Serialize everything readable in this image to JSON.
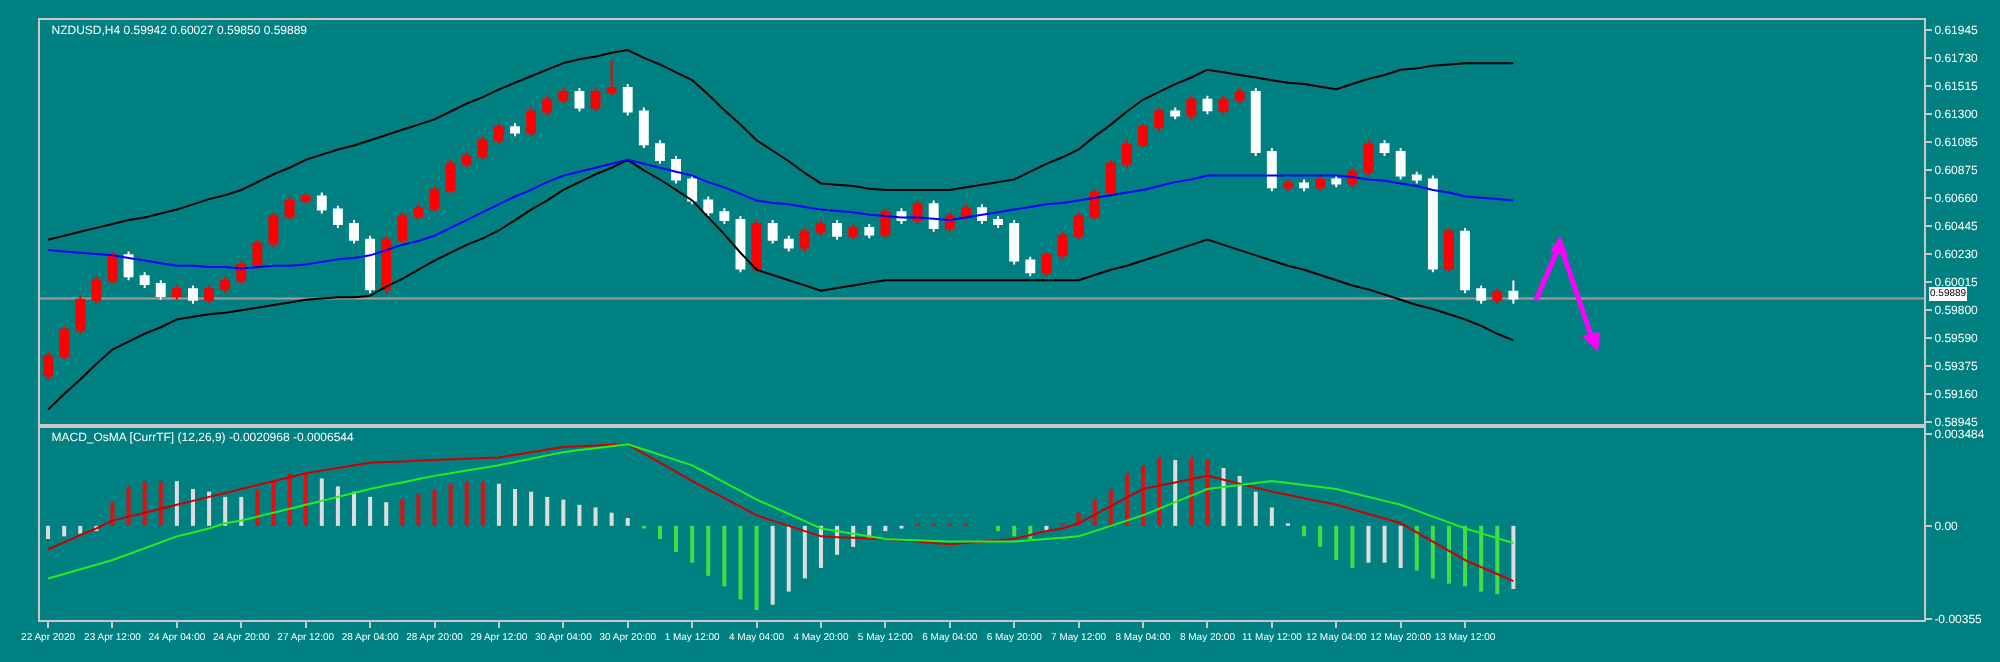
{
  "chart_data": [
    {
      "type": "candlestick",
      "title": "NZDUSD,H4 0.59942 0.60027 0.59850 0.59889",
      "tick_labels": "y",
      "categories": [
        null,
        null,
        null,
        null,
        null,
        null,
        null,
        null,
        null,
        null,
        null,
        null,
        null,
        null,
        null,
        null,
        null,
        null,
        null,
        null,
        null,
        null,
        null,
        null,
        null,
        null,
        null,
        null,
        null,
        null,
        null,
        null,
        null,
        null,
        null,
        null,
        null,
        null,
        null,
        null,
        null,
        null,
        null,
        null,
        null,
        null,
        null,
        null,
        null,
        null,
        null,
        null,
        null,
        null,
        null,
        null,
        null,
        null,
        null,
        null,
        null,
        null,
        null,
        null,
        null,
        null,
        null,
        null,
        null,
        null,
        null,
        null,
        null,
        null,
        null,
        null,
        null,
        null,
        null,
        null,
        null,
        null,
        null,
        null,
        null,
        null,
        null,
        null,
        null,
        null,
        null,
        null,
        null,
        null,
        null,
        null,
        null,
        null,
        null,
        null,
        null,
        null,
        null,
        null,
        null,
        null,
        null,
        null,
        null,
        null,
        null,
        null,
        null,
        null,
        null,
        null,
        null
      ],
      "ohlc": [
        [
          0.593,
          0.5948,
          0.5927,
          0.5945
        ],
        [
          0.5945,
          0.5968,
          0.5942,
          0.5965
        ],
        [
          0.5965,
          0.5991,
          0.5962,
          0.5988
        ],
        [
          0.5988,
          0.6006,
          0.5985,
          0.6003
        ],
        [
          0.6003,
          0.6025,
          0.6,
          0.6022
        ],
        [
          0.6022,
          0.6025,
          0.6003,
          0.6006
        ],
        [
          0.6006,
          0.6009,
          0.5997,
          0.6
        ],
        [
          0.6,
          0.6003,
          0.5988,
          0.5991
        ],
        [
          0.5991,
          0.5999,
          0.5988,
          0.5996
        ],
        [
          0.5996,
          0.5999,
          0.5985,
          0.5988
        ],
        [
          0.5988,
          0.5999,
          0.5985,
          0.5996
        ],
        [
          0.5996,
          0.6006,
          0.5993,
          0.6003
        ],
        [
          0.6003,
          0.6018,
          0.6,
          0.6015
        ],
        [
          0.6015,
          0.6034,
          0.6012,
          0.6031
        ],
        [
          0.6031,
          0.6055,
          0.6028,
          0.6052
        ],
        [
          0.6052,
          0.6067,
          0.6049,
          0.6064
        ],
        [
          0.6064,
          0.607,
          0.6061,
          0.6067
        ],
        [
          0.6067,
          0.607,
          0.6054,
          0.6057
        ],
        [
          0.6057,
          0.606,
          0.6043,
          0.6046
        ],
        [
          0.6046,
          0.6049,
          0.6031,
          0.6034
        ],
        [
          0.6034,
          0.6037,
          0.5993,
          0.5996
        ],
        [
          0.5996,
          0.6037,
          0.5993,
          0.6034
        ],
        [
          0.6034,
          0.6055,
          0.6031,
          0.6052
        ],
        [
          0.6052,
          0.6061,
          0.6049,
          0.6058
        ],
        [
          0.6058,
          0.6075,
          0.6055,
          0.6072
        ],
        [
          0.6072,
          0.6095,
          0.6069,
          0.6092
        ],
        [
          0.6092,
          0.6101,
          0.6089,
          0.6098
        ],
        [
          0.6098,
          0.6113,
          0.6095,
          0.611
        ],
        [
          0.611,
          0.6123,
          0.6107,
          0.612
        ],
        [
          0.612,
          0.6123,
          0.6113,
          0.6116
        ],
        [
          0.6116,
          0.6135,
          0.6113,
          0.6132
        ],
        [
          0.6132,
          0.6144,
          0.6129,
          0.6141
        ],
        [
          0.6141,
          0.615,
          0.6138,
          0.6147
        ],
        [
          0.6147,
          0.615,
          0.6132,
          0.6135
        ],
        [
          0.6135,
          0.615,
          0.6132,
          0.6147
        ],
        [
          0.6147,
          0.6172,
          0.6144,
          0.615
        ],
        [
          0.615,
          0.6153,
          0.6129,
          0.6132
        ],
        [
          0.6132,
          0.6135,
          0.6104,
          0.6107
        ],
        [
          0.6107,
          0.611,
          0.6092,
          0.6095
        ],
        [
          0.6095,
          0.6098,
          0.6077,
          0.608
        ],
        [
          0.608,
          0.6083,
          0.6061,
          0.6064
        ],
        [
          0.6064,
          0.6067,
          0.6052,
          0.6055
        ],
        [
          0.6055,
          0.6058,
          0.6046,
          0.6049
        ],
        [
          0.6049,
          0.6052,
          0.6009,
          0.6012
        ],
        [
          0.6012,
          0.6049,
          0.6009,
          0.6046
        ],
        [
          0.6046,
          0.6049,
          0.6031,
          0.6034
        ],
        [
          0.6034,
          0.6037,
          0.6025,
          0.6028
        ],
        [
          0.6028,
          0.6043,
          0.6025,
          0.604
        ],
        [
          0.604,
          0.6049,
          0.6037,
          0.6046
        ],
        [
          0.6046,
          0.6049,
          0.6034,
          0.6037
        ],
        [
          0.6037,
          0.6046,
          0.6034,
          0.6043
        ],
        [
          0.6043,
          0.6046,
          0.6035,
          0.6038
        ],
        [
          0.6038,
          0.6058,
          0.6035,
          0.6055
        ],
        [
          0.6055,
          0.6058,
          0.6046,
          0.6049
        ],
        [
          0.6049,
          0.6064,
          0.6046,
          0.6061
        ],
        [
          0.6061,
          0.6064,
          0.604,
          0.6043
        ],
        [
          0.6043,
          0.6055,
          0.604,
          0.6052
        ],
        [
          0.6052,
          0.6061,
          0.6049,
          0.6058
        ],
        [
          0.6058,
          0.6061,
          0.6046,
          0.6049
        ],
        [
          0.6049,
          0.6052,
          0.6043,
          0.6046
        ],
        [
          0.6046,
          0.6049,
          0.6015,
          0.6018
        ],
        [
          0.6018,
          0.6021,
          0.6006,
          0.6009
        ],
        [
          0.6009,
          0.6025,
          0.6006,
          0.6022
        ],
        [
          0.6022,
          0.604,
          0.6019,
          0.6037
        ],
        [
          0.6037,
          0.6055,
          0.6034,
          0.6052
        ],
        [
          0.6052,
          0.6073,
          0.6049,
          0.607
        ],
        [
          0.607,
          0.6095,
          0.6067,
          0.6092
        ],
        [
          0.6092,
          0.611,
          0.6089,
          0.6107
        ],
        [
          0.6107,
          0.6123,
          0.6104,
          0.612
        ],
        [
          0.612,
          0.6135,
          0.6117,
          0.6132
        ],
        [
          0.6132,
          0.6135,
          0.6126,
          0.6129
        ],
        [
          0.6129,
          0.6144,
          0.6126,
          0.6141
        ],
        [
          0.6141,
          0.6144,
          0.613,
          0.6133
        ],
        [
          0.6133,
          0.6144,
          0.613,
          0.6141
        ],
        [
          0.6141,
          0.615,
          0.6138,
          0.6147
        ],
        [
          0.6147,
          0.615,
          0.6098,
          0.6101
        ],
        [
          0.6101,
          0.6104,
          0.6071,
          0.6074
        ],
        [
          0.6074,
          0.608,
          0.6071,
          0.6077
        ],
        [
          0.6077,
          0.608,
          0.6071,
          0.6074
        ],
        [
          0.6074,
          0.6083,
          0.6071,
          0.608
        ],
        [
          0.608,
          0.6083,
          0.6074,
          0.6077
        ],
        [
          0.6077,
          0.6089,
          0.6074,
          0.6086
        ],
        [
          0.6086,
          0.611,
          0.6083,
          0.6107
        ],
        [
          0.6107,
          0.611,
          0.6098,
          0.6101
        ],
        [
          0.6101,
          0.6104,
          0.608,
          0.6083
        ],
        [
          0.6083,
          0.6086,
          0.6077,
          0.608
        ],
        [
          0.608,
          0.6083,
          0.6009,
          0.6012
        ],
        [
          0.6012,
          0.6043,
          0.6009,
          0.604
        ],
        [
          0.604,
          0.6043,
          0.5993,
          0.5996
        ],
        [
          0.5996,
          0.5999,
          0.5985,
          0.5988
        ],
        [
          0.5988,
          0.5997,
          0.5985,
          0.5994
        ],
        [
          0.59942,
          0.60027,
          0.5985,
          0.59889
        ],
        null,
        null,
        null,
        null,
        null,
        null,
        null,
        null,
        null,
        null,
        null,
        null,
        null,
        null,
        null,
        null,
        null,
        null,
        null,
        null,
        null,
        null,
        null,
        null,
        null
      ],
      "colors": [
        "#ff0000",
        "#ff0000",
        "#ff0000",
        "#ff0000",
        "#ff0000",
        "#ffffff",
        "#ffffff",
        "#ffffff",
        "#ff0000",
        "#ffffff",
        "#ff0000",
        "#ff0000",
        "#ff0000",
        "#ff0000",
        "#ff0000",
        "#ff0000",
        "#ff0000",
        "#ffffff",
        "#ffffff",
        "#ffffff",
        "#ffffff",
        "#ff0000",
        "#ff0000",
        "#ff0000",
        "#ff0000",
        "#ff0000",
        "#ff0000",
        "#ff0000",
        "#ff0000",
        "#ffffff",
        "#ff0000",
        "#ff0000",
        "#ff0000",
        "#ffffff",
        "#ff0000",
        "#ff0000",
        "#ffffff",
        "#ffffff",
        "#ffffff",
        "#ffffff",
        "#ffffff",
        "#ffffff",
        "#ffffff",
        "#ffffff",
        "#ff0000",
        "#ffffff",
        "#ffffff",
        "#ff0000",
        "#ff0000",
        "#ffffff",
        "#ff0000",
        "#ffffff",
        "#ff0000",
        "#ffffff",
        "#ff0000",
        "#ffffff",
        "#ff0000",
        "#ff0000",
        "#ffffff",
        "#ffffff",
        "#ffffff",
        "#ffffff",
        "#ff0000",
        "#ff0000",
        "#ff0000",
        "#ff0000",
        "#ff0000",
        "#ff0000",
        "#ff0000",
        "#ff0000",
        "#ffffff",
        "#ff0000",
        "#ffffff",
        "#ff0000",
        "#ff0000",
        "#ffffff",
        "#ffffff",
        "#ff0000",
        "#ffffff",
        "#ff0000",
        "#ffffff",
        "#ff0000",
        "#ff0000",
        "#ffffff",
        "#ffffff",
        "#ffffff",
        "#ffffff",
        "#ff0000",
        "#ffffff",
        "#ffffff",
        "#ff0000",
        "#ffffff",
        null,
        null,
        null,
        null,
        null,
        null,
        null,
        null,
        null,
        null,
        null,
        null,
        null,
        null,
        null,
        null,
        null,
        null,
        null,
        null,
        null,
        null,
        null,
        null,
        null
      ],
      "series": [
        {
          "type": "line",
          "color": "#000000",
          "values": [
            0.6034,
            0.6037,
            0.604,
            0.6043,
            0.6046,
            0.6049,
            0.6051,
            0.6054,
            0.6057,
            0.6061,
            0.6065,
            0.6068,
            0.6072,
            0.6078,
            0.6084,
            0.6089,
            0.6095,
            0.6099,
            0.6103,
            0.6106,
            0.611,
            0.6114,
            0.6118,
            0.6122,
            0.6126,
            0.6132,
            0.6138,
            0.6143,
            0.6149,
            0.6154,
            0.6159,
            0.6164,
            0.6169,
            0.6172,
            0.6174,
            0.6177,
            0.6179,
            0.6173,
            0.6168,
            0.6162,
            0.6156,
            0.6145,
            0.6133,
            0.6122,
            0.611,
            0.6102,
            0.6094,
            0.6085,
            0.6077,
            0.6076,
            0.6075,
            0.6073,
            0.6072,
            0.6072,
            0.6072,
            0.6072,
            0.6072,
            0.6074,
            0.6076,
            0.6078,
            0.608,
            0.6086,
            0.6092,
            0.6097,
            0.6103,
            0.6113,
            0.6122,
            0.6132,
            0.6141,
            0.6147,
            0.6153,
            0.6158,
            0.6164,
            0.6162,
            0.616,
            0.6158,
            0.6156,
            0.6154,
            0.6153,
            0.6151,
            0.6149,
            0.6153,
            0.6157,
            0.616,
            0.6164,
            0.6165,
            0.6167,
            0.6168,
            0.6169,
            0.6169,
            0.6169,
            0.6169,
            null,
            null,
            null,
            null,
            null,
            null,
            null,
            null,
            null,
            null,
            null,
            null,
            null,
            null,
            null,
            null,
            null,
            null,
            null,
            null,
            null,
            null,
            null,
            null,
            null
          ]
        },
        {
          "type": "line",
          "color": "#000000",
          "values": [
            0.5904,
            0.5916,
            0.5927,
            0.5939,
            0.595,
            0.5956,
            0.5962,
            0.5967,
            0.5973,
            0.5975,
            0.5977,
            0.5978,
            0.598,
            0.5982,
            0.5984,
            0.5986,
            0.5988,
            0.5989,
            0.599,
            0.599,
            0.5991,
            0.5998,
            0.6004,
            0.6011,
            0.6018,
            0.6024,
            0.603,
            0.6035,
            0.6041,
            0.6049,
            0.6057,
            0.6064,
            0.6072,
            0.6078,
            0.6084,
            0.6089,
            0.6095,
            0.6087,
            0.608,
            0.6072,
            0.6064,
            0.6051,
            0.6038,
            0.6024,
            0.6011,
            0.6007,
            0.6003,
            0.5999,
            0.5995,
            0.5997,
            0.5999,
            0.6001,
            0.6003,
            0.6003,
            0.6003,
            0.6003,
            0.6003,
            0.6003,
            0.6003,
            0.6003,
            0.6003,
            0.6003,
            0.6003,
            0.6003,
            0.6003,
            0.6007,
            0.6011,
            0.6014,
            0.6018,
            0.6022,
            0.6026,
            0.603,
            0.6034,
            0.603,
            0.6026,
            0.6022,
            0.6018,
            0.6014,
            0.6011,
            0.6007,
            0.6003,
            0.5999,
            0.5996,
            0.5992,
            0.5988,
            0.5984,
            0.5981,
            0.5977,
            0.5973,
            0.5968,
            0.5962,
            0.5957,
            null,
            null,
            null,
            null,
            null,
            null,
            null,
            null,
            null,
            null,
            null,
            null,
            null,
            null,
            null,
            null,
            null,
            null,
            null,
            null,
            null,
            null,
            null,
            null,
            null
          ]
        },
        {
          "type": "line",
          "color": "#0000ff",
          "values": [
            0.6026,
            0.6025,
            0.6024,
            0.6023,
            0.6022,
            0.602,
            0.6018,
            0.6016,
            0.6014,
            0.6014,
            0.6013,
            0.6013,
            0.6012,
            0.6013,
            0.6014,
            0.6014,
            0.6015,
            0.6017,
            0.6019,
            0.602,
            0.6022,
            0.6026,
            0.603,
            0.6033,
            0.6037,
            0.6043,
            0.6049,
            0.6055,
            0.6061,
            0.6067,
            0.6072,
            0.6078,
            0.6083,
            0.6086,
            0.6089,
            0.6092,
            0.6095,
            0.6092,
            0.6089,
            0.6086,
            0.6083,
            0.6078,
            0.6074,
            0.6069,
            0.6064,
            0.6062,
            0.6061,
            0.6059,
            0.6057,
            0.6056,
            0.6055,
            0.6053,
            0.6052,
            0.6051,
            0.6051,
            0.605,
            0.6049,
            0.6051,
            0.6053,
            0.6055,
            0.6057,
            0.6059,
            0.6061,
            0.6062,
            0.6064,
            0.6066,
            0.6068,
            0.607,
            0.6072,
            0.6075,
            0.6078,
            0.608,
            0.6083,
            0.6083,
            0.6083,
            0.6083,
            0.6083,
            0.6083,
            0.6083,
            0.6083,
            0.6083,
            0.6082,
            0.608,
            0.6079,
            0.6077,
            0.6075,
            0.6072,
            0.607,
            0.6067,
            0.6066,
            0.6065,
            0.6064,
            null,
            null,
            null,
            null,
            null,
            null,
            null,
            null,
            null,
            null,
            null,
            null,
            null,
            null,
            null,
            null,
            null,
            null,
            null,
            null,
            null,
            null,
            null,
            null,
            null
          ]
        }
      ],
      "ylim": [
        0.5893,
        0.6202
      ],
      "yticks": [
        {
          "value": 0.61945,
          "label": "0.61945"
        },
        {
          "value": 0.6173,
          "label": "0.61730"
        },
        {
          "value": 0.61515,
          "label": "0.61515"
        },
        {
          "value": 0.613,
          "label": "0.61300"
        },
        {
          "value": 0.61085,
          "label": "0.61085"
        },
        {
          "value": 0.60875,
          "label": "0.60875"
        },
        {
          "value": 0.6066,
          "label": "0.60660"
        },
        {
          "value": 0.60445,
          "label": "0.60445"
        },
        {
          "value": 0.6023,
          "label": "0.60230"
        },
        {
          "value": 0.60015,
          "label": "0.60015"
        },
        {
          "value": 0.598,
          "label": "0.59800"
        },
        {
          "value": 0.5959,
          "label": "0.59590"
        },
        {
          "value": 0.59375,
          "label": "0.59375"
        },
        {
          "value": 0.5916,
          "label": "0.59160"
        },
        {
          "value": 0.58945,
          "label": "0.58945"
        }
      ],
      "ref_lines": [
        {
          "axis": "y",
          "value": 0.59889,
          "label": "0.59889",
          "color": "#a0a0a0"
        }
      ]
    },
    {
      "type": "bar",
      "title": "MACD_OsMA [CurrTF] (12,26,9) -0.0020968 -0.0006544",
      "categories": [
        "22 Apr 2020",
        null,
        null,
        null,
        "23 Apr 12:00",
        null,
        null,
        null,
        "24 Apr 04:00",
        null,
        null,
        null,
        "24 Apr 20:00",
        null,
        null,
        null,
        "27 Apr 12:00",
        null,
        null,
        null,
        "28 Apr 04:00",
        null,
        null,
        null,
        "28 Apr 20:00",
        null,
        null,
        null,
        "29 Apr 12:00",
        null,
        null,
        null,
        "30 Apr 04:00",
        null,
        null,
        null,
        "30 Apr 20:00",
        null,
        null,
        null,
        "1 May 12:00",
        null,
        null,
        null,
        "4 May 04:00",
        null,
        null,
        null,
        "4 May 20:00",
        null,
        null,
        null,
        "5 May 12:00",
        null,
        null,
        null,
        "6 May 04:00",
        null,
        null,
        null,
        "6 May 20:00",
        null,
        null,
        null,
        "7 May 12:00",
        null,
        null,
        null,
        "8 May 04:00",
        null,
        null,
        null,
        "8 May 20:00",
        null,
        null,
        null,
        "11 May 12:00",
        null,
        null,
        null,
        "12 May 04:00",
        null,
        null,
        null,
        "12 May 20:00",
        null,
        null,
        null,
        "13 May 12:00",
        null,
        null,
        null,
        null,
        null,
        null,
        null,
        null,
        null,
        null,
        null,
        null,
        null,
        null,
        null,
        null,
        null,
        null,
        null,
        null,
        null,
        null,
        null,
        null,
        null,
        null,
        null,
        null
      ],
      "series": [
        {
          "type": "bar",
          "values": [
            -0.0005,
            -0.0004,
            -0.0003,
            -0.0002,
            0.0009,
            0.0015,
            0.0017,
            0.0017,
            0.0017,
            0.0014,
            0.0013,
            0.0011,
            0.0011,
            0.0014,
            0.0017,
            0.002,
            0.002,
            0.0018,
            0.0015,
            0.0013,
            0.0011,
            0.0009,
            0.001,
            0.0012,
            0.0014,
            0.0016,
            0.0017,
            0.0017,
            0.0016,
            0.0014,
            0.0013,
            0.0011,
            0.001,
            0.0008,
            0.0007,
            0.0005,
            0.0003,
            -0.0001,
            -0.0005,
            -0.001,
            -0.0014,
            -0.0019,
            -0.0023,
            -0.0028,
            -0.0032,
            -0.003,
            -0.0025,
            -0.002,
            -0.0016,
            -0.0011,
            -0.0008,
            -0.0005,
            -0.0002,
            -0.0001,
            0.0001,
            0.0001,
            0.0001,
            0.0001,
            0.0,
            -0.0002,
            -0.0004,
            -0.0005,
            -0.0002,
            0.0001,
            0.0005,
            0.001,
            0.0014,
            0.002,
            0.0023,
            0.0026,
            0.0025,
            0.0026,
            0.0025,
            0.0022,
            0.0019,
            0.0013,
            0.0007,
            0.0001,
            -0.0004,
            -0.0008,
            -0.0013,
            -0.0016,
            -0.0014,
            -0.0014,
            -0.0016,
            -0.0017,
            -0.002,
            -0.0022,
            -0.0023,
            -0.0025,
            -0.0026,
            -0.0024,
            null,
            null,
            null,
            null,
            null,
            null,
            null,
            null,
            null,
            null,
            null,
            null,
            null,
            null,
            null,
            null,
            null,
            null,
            null,
            null,
            null,
            null,
            null,
            null,
            null
          ],
          "colors": [
            "#dddddd",
            "#dddddd",
            "#dddddd",
            "#dddddd",
            "#dd1111",
            "#dd1111",
            "#dd1111",
            "#dd1111",
            "#dddddd",
            "#dddddd",
            "#dddddd",
            "#dddddd",
            "#dddddd",
            "#dd1111",
            "#dd1111",
            "#dd1111",
            "#dd1111",
            "#dddddd",
            "#dddddd",
            "#dddddd",
            "#dddddd",
            "#dddddd",
            "#dd1111",
            "#dd1111",
            "#dd1111",
            "#dd1111",
            "#dd1111",
            "#dd1111",
            "#dddddd",
            "#dddddd",
            "#dddddd",
            "#dddddd",
            "#dddddd",
            "#dddddd",
            "#dddddd",
            "#dddddd",
            "#dddddd",
            "#44dd44",
            "#44dd44",
            "#44dd44",
            "#44dd44",
            "#44dd44",
            "#44dd44",
            "#44dd44",
            "#44dd44",
            "#dddddd",
            "#dddddd",
            "#dddddd",
            "#dddddd",
            "#dddddd",
            "#dddddd",
            "#dddddd",
            "#dddddd",
            "#dddddd",
            "#dd1111",
            "#dd1111",
            "#dd1111",
            "#dd1111",
            "#dddddd",
            "#44dd44",
            "#44dd44",
            "#44dd44",
            "#dddddd",
            "#dd1111",
            "#dd1111",
            "#dd1111",
            "#dd1111",
            "#dd1111",
            "#dd1111",
            "#dd1111",
            "#dddddd",
            "#dd1111",
            "#dd1111",
            "#dddddd",
            "#dddddd",
            "#dddddd",
            "#dddddd",
            "#dddddd",
            "#44dd44",
            "#44dd44",
            "#44dd44",
            "#44dd44",
            "#dddddd",
            "#dddddd",
            "#dddddd",
            "#44dd44",
            "#44dd44",
            "#44dd44",
            "#44dd44",
            "#44dd44",
            "#44dd44",
            "#dddddd",
            null,
            null,
            null,
            null,
            null,
            null,
            null,
            null,
            null,
            null,
            null,
            null,
            null,
            null,
            null,
            null,
            null,
            null,
            null,
            null,
            null,
            null,
            null,
            null,
            null
          ]
        },
        {
          "type": "line",
          "color": "#cc0000",
          "values": [
            -0.0009,
            -0.00063,
            -0.00035,
            -0.0001,
            0.0002,
            0.00035,
            0.0005,
            0.00065,
            0.0008,
            0.00095,
            0.0011,
            0.00125,
            0.0014,
            0.00155,
            0.0017,
            0.00185,
            0.002,
            0.0021,
            0.0022,
            0.0023,
            0.0024,
            0.00243,
            0.00245,
            0.00248,
            0.0025,
            0.00253,
            0.00255,
            0.00258,
            0.0026,
            0.0027,
            0.0028,
            0.0029,
            0.003,
            0.00303,
            0.00305,
            0.00308,
            0.0031,
            0.00275,
            0.0024,
            0.00205,
            0.0017,
            0.00138,
            0.00105,
            0.00073,
            0.0004,
            0.0002,
            0,
            -0.0002,
            -0.0004,
            -0.00043,
            -0.00045,
            -0.00048,
            -0.0005,
            -0.00055,
            -0.0006,
            -0.00065,
            -0.0007,
            -0.00065,
            -0.0006,
            -0.00055,
            -0.0005,
            -0.00035,
            -0.0002,
            -0.0001,
            0.0001,
            0.00043,
            0.00075,
            0.00108,
            0.0014,
            0.00153,
            0.00165,
            0.00178,
            0.0019,
            0.00175,
            0.0016,
            0.00145,
            0.0013,
            0.00118,
            0.00105,
            0.00093,
            0.0008,
            0.00063,
            0.00045,
            0.00028,
            0.0001,
            -0.00025,
            -0.0006,
            -0.00095,
            -0.0013,
            -0.00157,
            -0.00183,
            -0.0021,
            null,
            null,
            null,
            null,
            null,
            null,
            null,
            null,
            null,
            null,
            null,
            null,
            null,
            null,
            null,
            null,
            null,
            null,
            null,
            null,
            null,
            null,
            null,
            null,
            null
          ]
        },
        {
          "type": "line",
          "color": "#22ee22",
          "values": [
            -0.002,
            -0.00183,
            -0.00165,
            -0.00148,
            -0.0013,
            -0.00108,
            -0.00085,
            -0.00063,
            -0.0004,
            -0.00025,
            -0.0001,
            0.0001,
            0.0002,
            0.00035,
            0.0005,
            0.00065,
            0.0008,
            0.00095,
            0.0011,
            0.00125,
            0.0014,
            0.00153,
            0.00165,
            0.00178,
            0.0019,
            0.002,
            0.0021,
            0.0022,
            0.0023,
            0.00243,
            0.00255,
            0.00268,
            0.0028,
            0.00288,
            0.00295,
            0.00303,
            0.0031,
            0.0029,
            0.0027,
            0.0025,
            0.0023,
            0.00198,
            0.00165,
            0.00133,
            0.001,
            0.00073,
            0.00045,
            0.00018,
            -0.0001,
            -0.0002,
            -0.0003,
            -0.0004,
            -0.0005,
            -0.00053,
            -0.00055,
            -0.00058,
            -0.0006,
            -0.0006,
            -0.0006,
            -0.0006,
            -0.0006,
            -0.00055,
            -0.0005,
            -0.00045,
            -0.0004,
            -0.0002,
            0,
            0.0002,
            0.0004,
            0.00065,
            0.0009,
            0.00115,
            0.0014,
            0.00148,
            0.00155,
            0.00163,
            0.0017,
            0.00163,
            0.00155,
            0.00148,
            0.0014,
            0.00125,
            0.0011,
            0.00095,
            0.0008,
            0.00058,
            0.00035,
            0.00013,
            -0.0001,
            -0.00028,
            -0.00047,
            -0.00065,
            null,
            null,
            null,
            null,
            null,
            null,
            null,
            null,
            null,
            null,
            null,
            null,
            null,
            null,
            null,
            null,
            null,
            null,
            null,
            null,
            null,
            null,
            null,
            null,
            null
          ]
        }
      ],
      "ylim": [
        -0.00358,
        0.00372
      ],
      "yticks": [
        {
          "value": 0.003484,
          "label": "0.003484"
        },
        {
          "value": 0,
          "label": "0.00"
        },
        {
          "value": -0.00355,
          "label": "-0.00355"
        }
      ]
    }
  ]
}
